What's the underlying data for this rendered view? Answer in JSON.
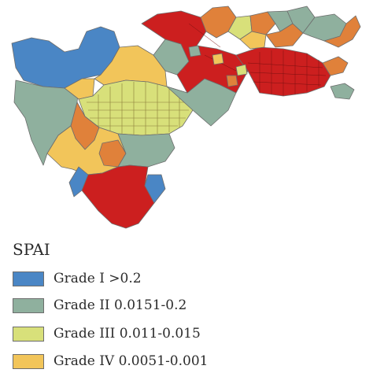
{
  "legend": {
    "title": "SPAI",
    "items": [
      {
        "label": "Grade I >0.2",
        "color": "#4a86c5"
      },
      {
        "label": "Grade II 0.0151-0.2",
        "color": "#8fb09e"
      },
      {
        "label": "Grade III 0.011-0.015",
        "color": "#d8e07a"
      },
      {
        "label": "Grade IV 0.0051-0.001",
        "color": "#f2c55a"
      }
    ]
  },
  "map": {
    "colors": {
      "grade_1": "#4a86c5",
      "grade_2": "#8fb09e",
      "grade_3": "#d8e07a",
      "grade_4": "#f2c55a",
      "grade_5_orange": "#e0813a",
      "grade_6_red": "#cc1f1f",
      "boundary": "#6d6d6d"
    }
  }
}
